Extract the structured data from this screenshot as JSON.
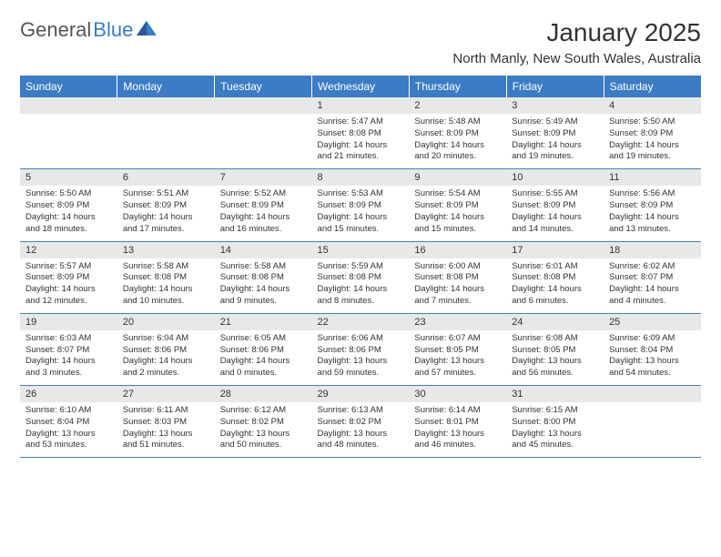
{
  "logo": {
    "text1": "General",
    "text2": "Blue",
    "text1_color": "#555555",
    "text2_color": "#3b7cc4",
    "icon_color": "#3b7cc4"
  },
  "header": {
    "month_title": "January 2025",
    "location": "North Manly, New South Wales, Australia"
  },
  "colors": {
    "header_bg": "#3b7cc4",
    "header_text": "#ffffff",
    "day_number_bg": "#e8e8e8",
    "border": "#4a7fb8",
    "text": "#333333"
  },
  "day_headers": [
    "Sunday",
    "Monday",
    "Tuesday",
    "Wednesday",
    "Thursday",
    "Friday",
    "Saturday"
  ],
  "weeks": [
    [
      {
        "day": "",
        "sunrise": "",
        "sunset": "",
        "daylight": ""
      },
      {
        "day": "",
        "sunrise": "",
        "sunset": "",
        "daylight": ""
      },
      {
        "day": "",
        "sunrise": "",
        "sunset": "",
        "daylight": ""
      },
      {
        "day": "1",
        "sunrise": "Sunrise: 5:47 AM",
        "sunset": "Sunset: 8:08 PM",
        "daylight": "Daylight: 14 hours and 21 minutes."
      },
      {
        "day": "2",
        "sunrise": "Sunrise: 5:48 AM",
        "sunset": "Sunset: 8:09 PM",
        "daylight": "Daylight: 14 hours and 20 minutes."
      },
      {
        "day": "3",
        "sunrise": "Sunrise: 5:49 AM",
        "sunset": "Sunset: 8:09 PM",
        "daylight": "Daylight: 14 hours and 19 minutes."
      },
      {
        "day": "4",
        "sunrise": "Sunrise: 5:50 AM",
        "sunset": "Sunset: 8:09 PM",
        "daylight": "Daylight: 14 hours and 19 minutes."
      }
    ],
    [
      {
        "day": "5",
        "sunrise": "Sunrise: 5:50 AM",
        "sunset": "Sunset: 8:09 PM",
        "daylight": "Daylight: 14 hours and 18 minutes."
      },
      {
        "day": "6",
        "sunrise": "Sunrise: 5:51 AM",
        "sunset": "Sunset: 8:09 PM",
        "daylight": "Daylight: 14 hours and 17 minutes."
      },
      {
        "day": "7",
        "sunrise": "Sunrise: 5:52 AM",
        "sunset": "Sunset: 8:09 PM",
        "daylight": "Daylight: 14 hours and 16 minutes."
      },
      {
        "day": "8",
        "sunrise": "Sunrise: 5:53 AM",
        "sunset": "Sunset: 8:09 PM",
        "daylight": "Daylight: 14 hours and 15 minutes."
      },
      {
        "day": "9",
        "sunrise": "Sunrise: 5:54 AM",
        "sunset": "Sunset: 8:09 PM",
        "daylight": "Daylight: 14 hours and 15 minutes."
      },
      {
        "day": "10",
        "sunrise": "Sunrise: 5:55 AM",
        "sunset": "Sunset: 8:09 PM",
        "daylight": "Daylight: 14 hours and 14 minutes."
      },
      {
        "day": "11",
        "sunrise": "Sunrise: 5:56 AM",
        "sunset": "Sunset: 8:09 PM",
        "daylight": "Daylight: 14 hours and 13 minutes."
      }
    ],
    [
      {
        "day": "12",
        "sunrise": "Sunrise: 5:57 AM",
        "sunset": "Sunset: 8:09 PM",
        "daylight": "Daylight: 14 hours and 12 minutes."
      },
      {
        "day": "13",
        "sunrise": "Sunrise: 5:58 AM",
        "sunset": "Sunset: 8:08 PM",
        "daylight": "Daylight: 14 hours and 10 minutes."
      },
      {
        "day": "14",
        "sunrise": "Sunrise: 5:58 AM",
        "sunset": "Sunset: 8:08 PM",
        "daylight": "Daylight: 14 hours and 9 minutes."
      },
      {
        "day": "15",
        "sunrise": "Sunrise: 5:59 AM",
        "sunset": "Sunset: 8:08 PM",
        "daylight": "Daylight: 14 hours and 8 minutes."
      },
      {
        "day": "16",
        "sunrise": "Sunrise: 6:00 AM",
        "sunset": "Sunset: 8:08 PM",
        "daylight": "Daylight: 14 hours and 7 minutes."
      },
      {
        "day": "17",
        "sunrise": "Sunrise: 6:01 AM",
        "sunset": "Sunset: 8:08 PM",
        "daylight": "Daylight: 14 hours and 6 minutes."
      },
      {
        "day": "18",
        "sunrise": "Sunrise: 6:02 AM",
        "sunset": "Sunset: 8:07 PM",
        "daylight": "Daylight: 14 hours and 4 minutes."
      }
    ],
    [
      {
        "day": "19",
        "sunrise": "Sunrise: 6:03 AM",
        "sunset": "Sunset: 8:07 PM",
        "daylight": "Daylight: 14 hours and 3 minutes."
      },
      {
        "day": "20",
        "sunrise": "Sunrise: 6:04 AM",
        "sunset": "Sunset: 8:06 PM",
        "daylight": "Daylight: 14 hours and 2 minutes."
      },
      {
        "day": "21",
        "sunrise": "Sunrise: 6:05 AM",
        "sunset": "Sunset: 8:06 PM",
        "daylight": "Daylight: 14 hours and 0 minutes."
      },
      {
        "day": "22",
        "sunrise": "Sunrise: 6:06 AM",
        "sunset": "Sunset: 8:06 PM",
        "daylight": "Daylight: 13 hours and 59 minutes."
      },
      {
        "day": "23",
        "sunrise": "Sunrise: 6:07 AM",
        "sunset": "Sunset: 8:05 PM",
        "daylight": "Daylight: 13 hours and 57 minutes."
      },
      {
        "day": "24",
        "sunrise": "Sunrise: 6:08 AM",
        "sunset": "Sunset: 8:05 PM",
        "daylight": "Daylight: 13 hours and 56 minutes."
      },
      {
        "day": "25",
        "sunrise": "Sunrise: 6:09 AM",
        "sunset": "Sunset: 8:04 PM",
        "daylight": "Daylight: 13 hours and 54 minutes."
      }
    ],
    [
      {
        "day": "26",
        "sunrise": "Sunrise: 6:10 AM",
        "sunset": "Sunset: 8:04 PM",
        "daylight": "Daylight: 13 hours and 53 minutes."
      },
      {
        "day": "27",
        "sunrise": "Sunrise: 6:11 AM",
        "sunset": "Sunset: 8:03 PM",
        "daylight": "Daylight: 13 hours and 51 minutes."
      },
      {
        "day": "28",
        "sunrise": "Sunrise: 6:12 AM",
        "sunset": "Sunset: 8:02 PM",
        "daylight": "Daylight: 13 hours and 50 minutes."
      },
      {
        "day": "29",
        "sunrise": "Sunrise: 6:13 AM",
        "sunset": "Sunset: 8:02 PM",
        "daylight": "Daylight: 13 hours and 48 minutes."
      },
      {
        "day": "30",
        "sunrise": "Sunrise: 6:14 AM",
        "sunset": "Sunset: 8:01 PM",
        "daylight": "Daylight: 13 hours and 46 minutes."
      },
      {
        "day": "31",
        "sunrise": "Sunrise: 6:15 AM",
        "sunset": "Sunset: 8:00 PM",
        "daylight": "Daylight: 13 hours and 45 minutes."
      },
      {
        "day": "",
        "sunrise": "",
        "sunset": "",
        "daylight": ""
      }
    ]
  ]
}
